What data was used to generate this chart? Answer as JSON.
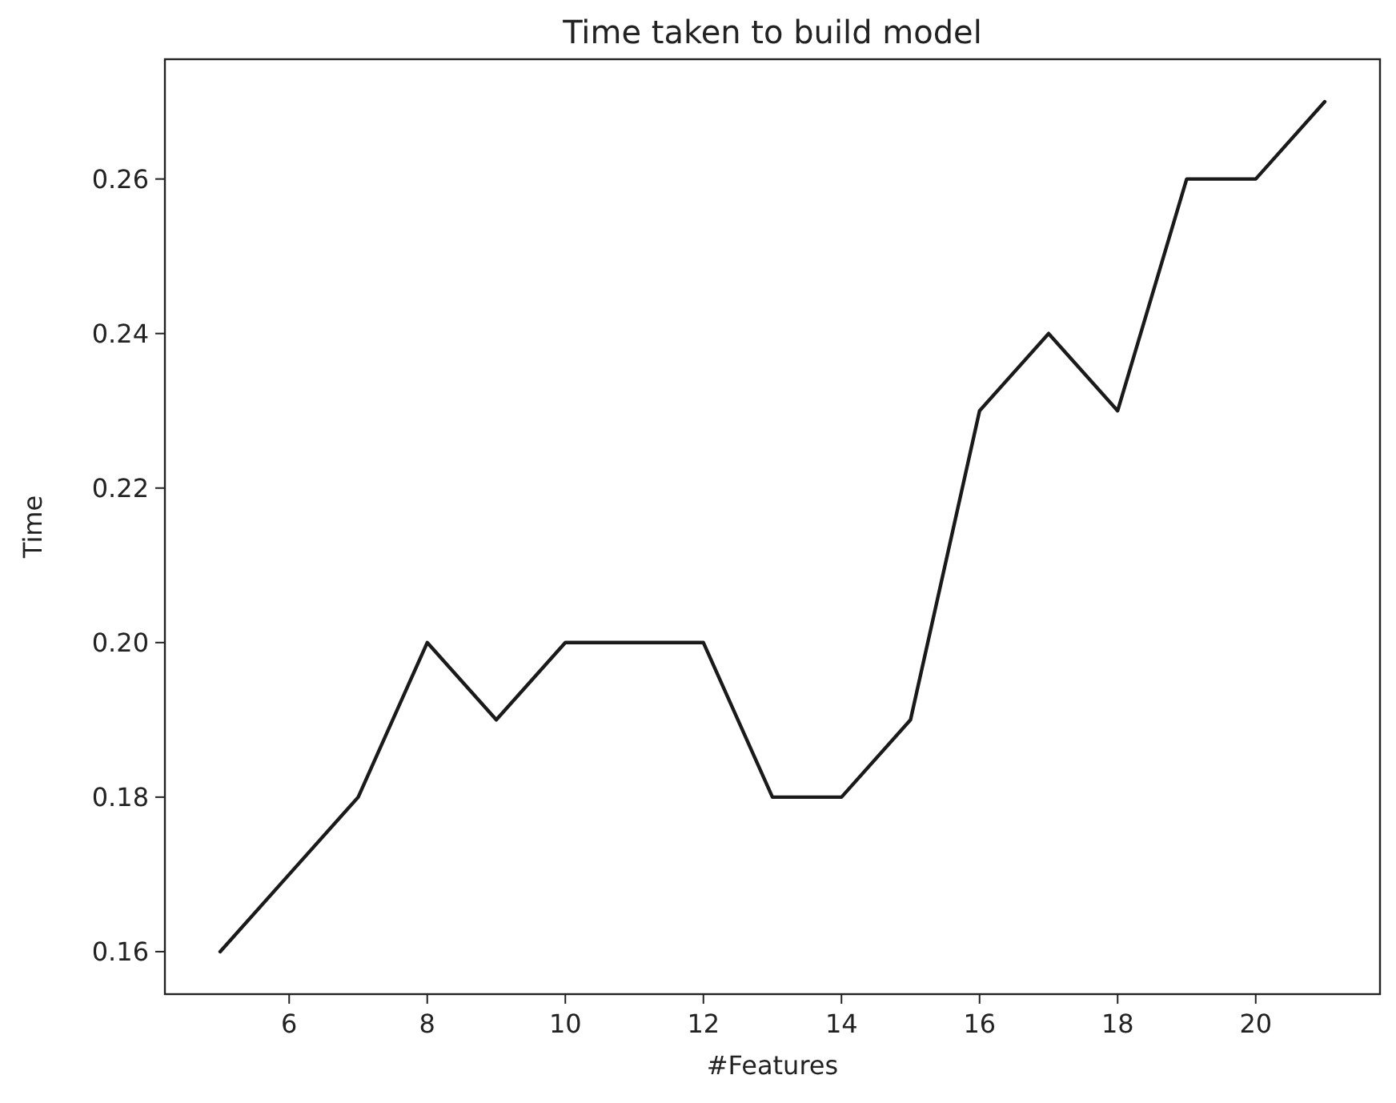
{
  "chart_data": {
    "type": "line",
    "title": "Time taken to build model",
    "xlabel": "#Features",
    "ylabel": "Time",
    "x": [
      5,
      6,
      7,
      8,
      9,
      10,
      11,
      12,
      13,
      14,
      15,
      16,
      17,
      18,
      19,
      20,
      21
    ],
    "series": [
      {
        "color": "#1a1a1a",
        "values": [
          0.16,
          0.17,
          0.18,
          0.2,
          0.19,
          0.2,
          0.2,
          0.2,
          0.18,
          0.18,
          0.19,
          0.23,
          0.24,
          0.23,
          0.26,
          0.26,
          0.27
        ]
      }
    ],
    "xlim": [
      4.2,
      21.8
    ],
    "xticks": [
      6,
      8,
      10,
      12,
      14,
      16,
      18,
      20
    ],
    "ylim": [
      0.1545,
      0.2755
    ],
    "yticks": [
      {
        "value": 0.16,
        "label": "0.16"
      },
      {
        "value": 0.18,
        "label": "0.18"
      },
      {
        "value": 0.2,
        "label": "0.20"
      },
      {
        "value": 0.22,
        "label": "0.22"
      },
      {
        "value": 0.24,
        "label": "0.24"
      },
      {
        "value": 0.26,
        "label": "0.26"
      }
    ],
    "grid": false,
    "marker": "none",
    "line_style": "solid"
  }
}
